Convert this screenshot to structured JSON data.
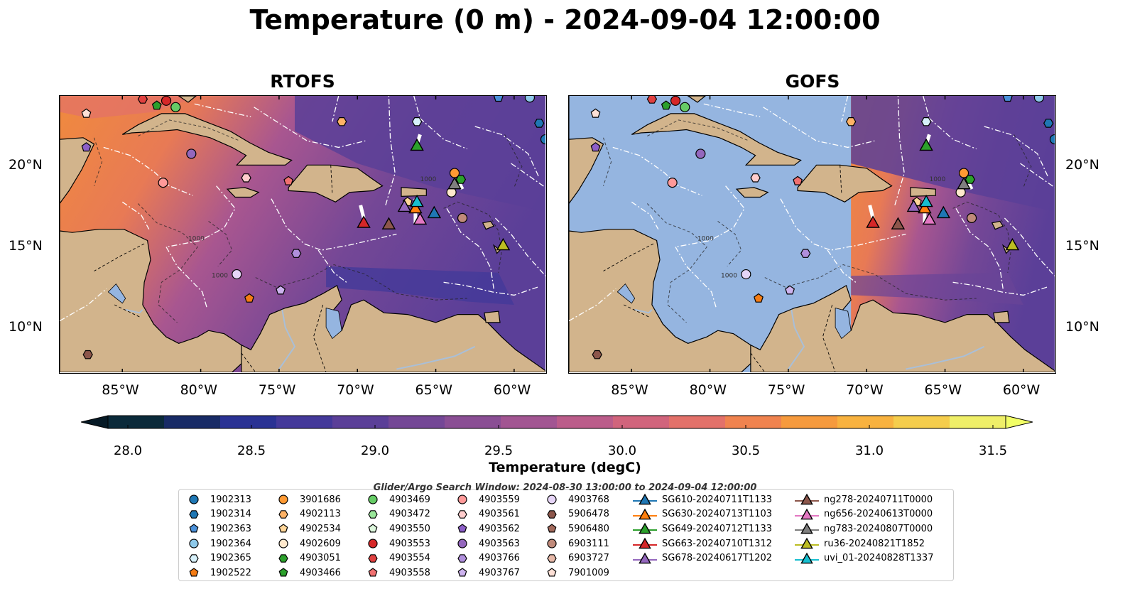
{
  "title": "Temperature (0 m) - 2024-09-04 12:00:00",
  "panels": [
    {
      "id": "rtofs",
      "title": "RTOFS"
    },
    {
      "id": "gofs",
      "title": "GOFS"
    }
  ],
  "axes": {
    "lon_ticks": [
      "85°W",
      "80°W",
      "75°W",
      "70°W",
      "65°W",
      "60°W"
    ],
    "lat_ticks": [
      "20°N",
      "15°N",
      "10°N"
    ],
    "lon_range": [
      -89,
      -58
    ],
    "lat_range": [
      7,
      24.2
    ]
  },
  "map_labels": {
    "contour_label": "1000"
  },
  "colorbar": {
    "label": "Temperature (degC)",
    "ticks": [
      "28.0",
      "28.5",
      "29.0",
      "29.5",
      "30.0",
      "30.5",
      "31.0",
      "31.5"
    ],
    "range": [
      28.0,
      31.5
    ],
    "colors": [
      "#0b2a3a",
      "#182b66",
      "#2a3294",
      "#44399a",
      "#5b3f98",
      "#744796",
      "#8a4e94",
      "#a25592",
      "#bb5c8a",
      "#d1647c",
      "#e3716a",
      "#f0834f",
      "#f69a3d",
      "#f8b23f",
      "#f5cd4c",
      "#efef68"
    ]
  },
  "legend": {
    "note": "Glider/Argo Search Window: 2024-08-30 13:00:00 to 2024-09-04 12:00:00",
    "argo": [
      {
        "name": "1902313",
        "marker": "circle",
        "color": "#1f77b4"
      },
      {
        "name": "1902314",
        "marker": "hexagon",
        "color": "#1f77b4"
      },
      {
        "name": "1902363",
        "marker": "pentagon",
        "color": "#4a90d9"
      },
      {
        "name": "1902364",
        "marker": "circle",
        "color": "#8ec9ea"
      },
      {
        "name": "1902365",
        "marker": "hexagon",
        "color": "#d6f0fa"
      },
      {
        "name": "1902522",
        "marker": "pentagon",
        "color": "#f57c14"
      },
      {
        "name": "3901686",
        "marker": "circle",
        "color": "#ff9933"
      },
      {
        "name": "4902113",
        "marker": "hexagon",
        "color": "#ffb266"
      },
      {
        "name": "4902534",
        "marker": "pentagon",
        "color": "#ffd699"
      },
      {
        "name": "4902609",
        "marker": "circle",
        "color": "#ffe8cc"
      },
      {
        "name": "4903051",
        "marker": "hexagon",
        "color": "#2ca02c"
      },
      {
        "name": "4903466",
        "marker": "pentagon",
        "color": "#2ca02c"
      },
      {
        "name": "4903469",
        "marker": "circle",
        "color": "#66cc66"
      },
      {
        "name": "4903472",
        "marker": "hexagon",
        "color": "#99e699"
      },
      {
        "name": "4903550",
        "marker": "pentagon",
        "color": "#ddf7dd"
      },
      {
        "name": "4903553",
        "marker": "circle",
        "color": "#d62728"
      },
      {
        "name": "4903554",
        "marker": "hexagon",
        "color": "#e04040"
      },
      {
        "name": "4903558",
        "marker": "pentagon",
        "color": "#f07070"
      },
      {
        "name": "4903559",
        "marker": "circle",
        "color": "#ff9999"
      },
      {
        "name": "4903561",
        "marker": "hexagon",
        "color": "#ffcccc"
      },
      {
        "name": "4903562",
        "marker": "pentagon",
        "color": "#8c5fc8"
      },
      {
        "name": "4903563",
        "marker": "circle",
        "color": "#9467bd"
      },
      {
        "name": "4903766",
        "marker": "hexagon",
        "color": "#b08fdc"
      },
      {
        "name": "4903767",
        "marker": "pentagon",
        "color": "#cdb3ee"
      },
      {
        "name": "4903768",
        "marker": "circle",
        "color": "#e6d5f7"
      },
      {
        "name": "5906478",
        "marker": "hexagon",
        "color": "#8c564b"
      },
      {
        "name": "5906480",
        "marker": "pentagon",
        "color": "#a36a5c"
      },
      {
        "name": "6903111",
        "marker": "circle",
        "color": "#c08a7a"
      },
      {
        "name": "6903727",
        "marker": "hexagon",
        "color": "#e6b8a8"
      },
      {
        "name": "7901009",
        "marker": "pentagon",
        "color": "#fde0d6"
      }
    ],
    "gliders": [
      {
        "name": "SG610-20240711T1133",
        "color": "#1f77b4"
      },
      {
        "name": "SG630-20240713T1103",
        "color": "#ff7f0e"
      },
      {
        "name": "SG649-20240712T1133",
        "color": "#2ca02c"
      },
      {
        "name": "SG663-20240710T1312",
        "color": "#d62728"
      },
      {
        "name": "SG678-20240617T1202",
        "color": "#9467bd"
      },
      {
        "name": "ng278-20240711T0000",
        "color": "#8c564b"
      },
      {
        "name": "ng656-20240613T0000",
        "color": "#e377c2"
      },
      {
        "name": "ng783-20240807T0000",
        "color": "#7f7f7f"
      },
      {
        "name": "ru36-20240821T1852",
        "color": "#bcbd22"
      },
      {
        "name": "uvi_01-20240828T1337",
        "color": "#17becf"
      }
    ]
  },
  "map_markers": {
    "argo": [
      {
        "lon": -82.2,
        "lat": 23.9,
        "marker": "circle",
        "color": "#d62728"
      },
      {
        "lon": -83.7,
        "lat": 24.0,
        "marker": "hexagon",
        "color": "#e04040"
      },
      {
        "lon": -82.8,
        "lat": 23.6,
        "marker": "pentagon",
        "color": "#2ca02c"
      },
      {
        "lon": -81.6,
        "lat": 23.5,
        "marker": "circle",
        "color": "#66cc66"
      },
      {
        "lon": -87.3,
        "lat": 23.1,
        "marker": "pentagon",
        "color": "#fde0d6"
      },
      {
        "lon": -87.3,
        "lat": 21.0,
        "marker": "pentagon",
        "color": "#8c5fc8"
      },
      {
        "lon": -80.6,
        "lat": 20.6,
        "marker": "circle",
        "color": "#9467bd"
      },
      {
        "lon": -82.4,
        "lat": 18.8,
        "marker": "circle",
        "color": "#ff9999"
      },
      {
        "lon": -77.1,
        "lat": 19.1,
        "marker": "hexagon",
        "color": "#ffcccc"
      },
      {
        "lon": -74.4,
        "lat": 18.9,
        "marker": "pentagon",
        "color": "#f07070"
      },
      {
        "lon": -71.0,
        "lat": 22.6,
        "marker": "hexagon",
        "color": "#ffb266"
      },
      {
        "lon": -66.2,
        "lat": 22.6,
        "marker": "hexagon",
        "color": "#d6f0fa"
      },
      {
        "lon": -63.8,
        "lat": 19.4,
        "marker": "circle",
        "color": "#ff9933"
      },
      {
        "lon": -63.4,
        "lat": 19.0,
        "marker": "hexagon",
        "color": "#2ca02c"
      },
      {
        "lon": -64.0,
        "lat": 18.2,
        "marker": "circle",
        "color": "#ffe8cc"
      },
      {
        "lon": -66.8,
        "lat": 17.6,
        "marker": "pentagon",
        "color": "#ffd699"
      },
      {
        "lon": -63.3,
        "lat": 16.6,
        "marker": "circle",
        "color": "#c08a7a"
      },
      {
        "lon": -73.9,
        "lat": 14.4,
        "marker": "hexagon",
        "color": "#b08fdc"
      },
      {
        "lon": -77.7,
        "lat": 13.1,
        "marker": "circle",
        "color": "#e6d5f7"
      },
      {
        "lon": -74.9,
        "lat": 12.1,
        "marker": "pentagon",
        "color": "#cdb3ee"
      },
      {
        "lon": -76.9,
        "lat": 11.6,
        "marker": "pentagon",
        "color": "#f57c14"
      },
      {
        "lon": -87.2,
        "lat": 8.1,
        "marker": "hexagon",
        "color": "#8c564b"
      },
      {
        "lon": -59.0,
        "lat": 24.1,
        "marker": "circle",
        "color": "#8ec9ea"
      },
      {
        "lon": -61.0,
        "lat": 24.1,
        "marker": "pentagon",
        "color": "#4a90d9"
      },
      {
        "lon": -58.4,
        "lat": 22.5,
        "marker": "hexagon",
        "color": "#1f77b4"
      },
      {
        "lon": -58.0,
        "lat": 21.5,
        "marker": "circle",
        "color": "#1f77b4"
      }
    ],
    "gliders": [
      {
        "lon": -65.1,
        "lat": 16.9,
        "color": "#1f77b4"
      },
      {
        "lon": -66.3,
        "lat": 17.2,
        "color": "#ff7f0e"
      },
      {
        "lon": -66.2,
        "lat": 21.1,
        "color": "#2ca02c"
      },
      {
        "lon": -69.6,
        "lat": 16.3,
        "color": "#d62728"
      },
      {
        "lon": -67.0,
        "lat": 17.3,
        "color": "#9467bd"
      },
      {
        "lon": -68.0,
        "lat": 16.2,
        "color": "#8c564b"
      },
      {
        "lon": -66.0,
        "lat": 16.5,
        "color": "#e377c2"
      },
      {
        "lon": -63.8,
        "lat": 18.7,
        "color": "#7f7f7f"
      },
      {
        "lon": -60.7,
        "lat": 14.9,
        "color": "#bcbd22"
      },
      {
        "lon": -66.2,
        "lat": 17.6,
        "color": "#17becf"
      }
    ]
  }
}
